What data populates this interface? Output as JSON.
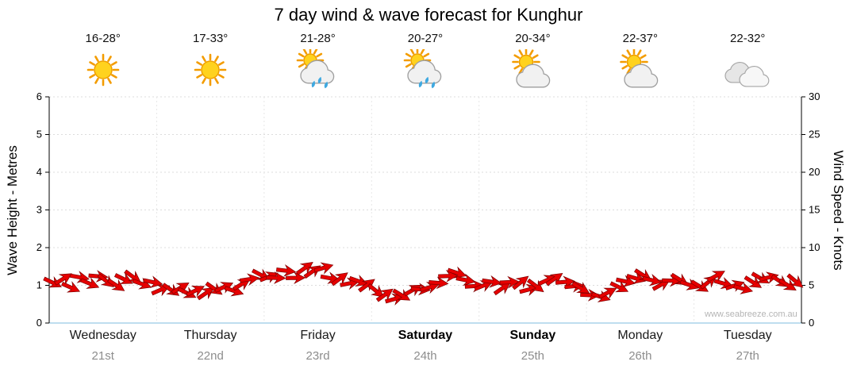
{
  "title": "7 day wind & wave forecast for Kunghur",
  "watermark": "www.seabreeze.com.au",
  "days": [
    {
      "name": "Wednesday",
      "date": "21st",
      "temp": "16-28°",
      "icon": "sunny",
      "bold": false
    },
    {
      "name": "Thursday",
      "date": "22nd",
      "temp": "17-33°",
      "icon": "sunny",
      "bold": false
    },
    {
      "name": "Friday",
      "date": "23rd",
      "temp": "21-28°",
      "icon": "sun-showers",
      "bold": false
    },
    {
      "name": "Saturday",
      "date": "24th",
      "temp": "20-27°",
      "icon": "sun-showers",
      "bold": true
    },
    {
      "name": "Sunday",
      "date": "25th",
      "temp": "20-34°",
      "icon": "partly-cloudy",
      "bold": true
    },
    {
      "name": "Monday",
      "date": "26th",
      "temp": "22-37°",
      "icon": "partly-cloudy",
      "bold": false
    },
    {
      "name": "Tuesday",
      "date": "27th",
      "temp": "22-32°",
      "icon": "cloudy",
      "bold": false
    }
  ],
  "chart_data": {
    "type": "line",
    "title": "7 day wind & wave forecast for Kunghur",
    "marker_style": "red wind arrows",
    "grid": "light dotted horizontal and vertical day separators",
    "legend": "none",
    "left_axis": {
      "label": "Wave Height - Metres",
      "range": [
        0,
        6
      ],
      "ticks": [
        0,
        1,
        2,
        3,
        4,
        5,
        6
      ]
    },
    "right_axis": {
      "label": "Wind Speed - Knots",
      "range": [
        0,
        30
      ],
      "ticks": [
        0,
        5,
        10,
        15,
        20,
        25,
        30
      ]
    },
    "x_categories": [
      "Wednesday 21st",
      "Thursday 22nd",
      "Friday 23rd",
      "Saturday 24th",
      "Sunday 25th",
      "Monday 26th",
      "Tuesday 27th"
    ],
    "series": [
      {
        "name": "Wind speed",
        "units": "knots",
        "color": "#e60000",
        "points_per_day": 12,
        "values": [
          5.2,
          5.6,
          4.8,
          5.9,
          5.1,
          6.2,
          5.4,
          4.7,
          5.8,
          6.0,
          4.9,
          5.3,
          4.6,
          4.2,
          4.8,
          4.1,
          4.5,
          3.9,
          4.4,
          4.9,
          4.3,
          5.1,
          5.6,
          6.1,
          6.4,
          6.0,
          6.8,
          6.3,
          7.0,
          6.6,
          7.1,
          6.2,
          5.7,
          5.2,
          5.6,
          5.0,
          4.4,
          3.9,
          3.5,
          3.8,
          4.2,
          4.6,
          5.0,
          5.5,
          6.0,
          6.4,
          5.8,
          5.2,
          4.8,
          5.3,
          4.6,
          5.7,
          5.1,
          4.5,
          5.0,
          5.6,
          6.1,
          5.4,
          4.9,
          4.4,
          4.0,
          3.6,
          4.2,
          4.7,
          5.2,
          5.7,
          6.1,
          5.5,
          5.0,
          5.4,
          5.9,
          5.3,
          5.0,
          5.5,
          6.0,
          5.4,
          4.8,
          4.3,
          5.2,
          5.8,
          6.3,
          5.7,
          5.1,
          5.4
        ]
      }
    ]
  }
}
